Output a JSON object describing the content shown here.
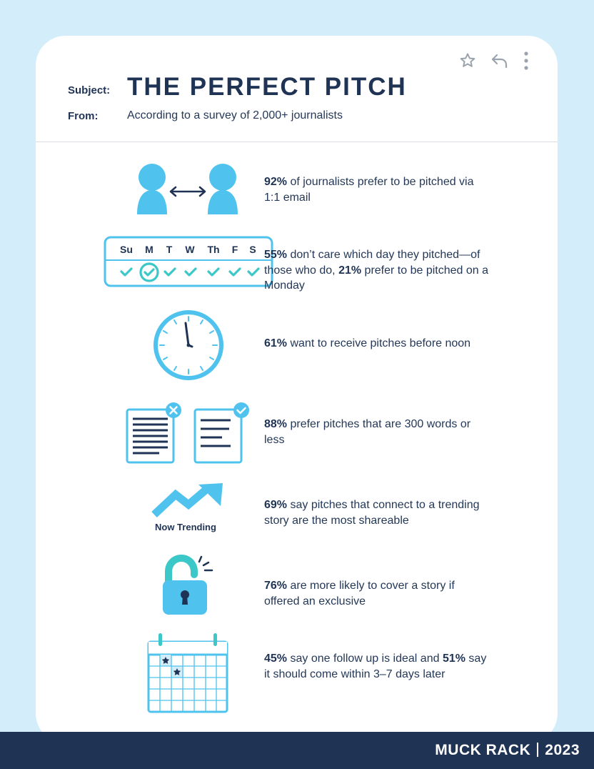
{
  "header": {
    "subject_label": "Subject:",
    "title": "THE PERFECT PITCH",
    "from_label": "From:",
    "from_text": "According to a survey of 2,000+ journalists"
  },
  "actions": [
    "star-icon",
    "reply-icon",
    "more-icon"
  ],
  "stats": [
    {
      "pre": "",
      "b1": "92%",
      "mid": " of journalists prefer to be pitched via 1:1 email",
      "b2": "",
      "post": ""
    },
    {
      "pre": "",
      "b1": "55%",
      "mid": " don’t care which day they pitched—of those who do, ",
      "b2": "21%",
      "post": " prefer to be pitched on a Monday"
    },
    {
      "pre": "",
      "b1": "61%",
      "mid": " want to receive pitches before noon",
      "b2": "",
      "post": ""
    },
    {
      "pre": "",
      "b1": "88%",
      "mid": " prefer pitches that are 300 words or less",
      "b2": "",
      "post": ""
    },
    {
      "pre": "",
      "b1": "69%",
      "mid": " say pitches that connect to a trending story are the most shareable",
      "b2": "",
      "post": ""
    },
    {
      "pre": "",
      "b1": "76%",
      "mid": " are more likely to cover a story if offered an exclusive",
      "b2": "",
      "post": ""
    },
    {
      "pre": "",
      "b1": "45%",
      "mid": " say one follow up is ideal and ",
      "b2": "51%",
      "post": " say it should come within 3–7 days later"
    }
  ],
  "weekdays": [
    "Su",
    "M",
    "T",
    "W",
    "Th",
    "F",
    "S"
  ],
  "trend_label": "Now Trending",
  "footer": {
    "brand": "MUCK RACK",
    "year": "2023"
  },
  "colors": {
    "navy": "#1f3354",
    "sky": "#4fc3ee",
    "teal": "#3cc8c8",
    "bg": "#d3eefa"
  }
}
